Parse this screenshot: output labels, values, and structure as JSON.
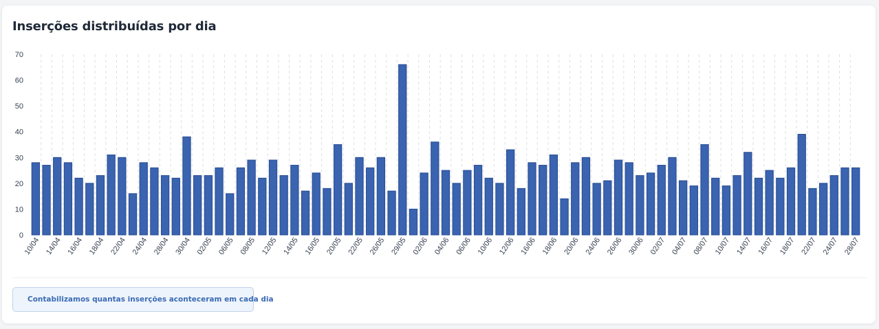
{
  "card": {
    "title": "Inserções distribuídas por dia",
    "info_text": "Contabilizamos quantas inserções aconteceram em cada dia",
    "info_icon": "info-circle-icon"
  },
  "colors": {
    "bar_fill": "#3a63b0",
    "bar_stroke": "#274b8f",
    "grid": "#dcdfe4",
    "info_accent": "#3b6bb5"
  },
  "chart_data": {
    "type": "bar",
    "title": "",
    "xlabel": "",
    "ylabel": "",
    "ylim": [
      0,
      70
    ],
    "y_ticks": [
      0,
      10,
      20,
      30,
      40,
      50,
      60,
      70
    ],
    "grid": "vertical dashed lines",
    "values": [
      28,
      27,
      30,
      28,
      22,
      20,
      23,
      31,
      30,
      16,
      28,
      26,
      23,
      22,
      38,
      23,
      23,
      26,
      16,
      26,
      29,
      22,
      29,
      23,
      27,
      17,
      24,
      18,
      35,
      20,
      30,
      26,
      30,
      17,
      66,
      10,
      24,
      36,
      25,
      20,
      25,
      27,
      22,
      20,
      33,
      18,
      28,
      27,
      31,
      14,
      28,
      30,
      20,
      21,
      29,
      28,
      23,
      24,
      27,
      30,
      21,
      19,
      35,
      22,
      19,
      23,
      32,
      22,
      25,
      22,
      26,
      39,
      18,
      20,
      23,
      26,
      26
    ],
    "x_tick_labels": [
      "10/04",
      "14/04",
      "16/04",
      "18/04",
      "22/04",
      "24/04",
      "28/04",
      "30/04",
      "02/05",
      "06/05",
      "08/05",
      "12/05",
      "14/05",
      "16/05",
      "20/05",
      "22/05",
      "26/05",
      "29/05",
      "02/06",
      "04/06",
      "06/06",
      "10/06",
      "12/06",
      "16/06",
      "18/06",
      "20/06",
      "24/06",
      "26/06",
      "30/06",
      "02/07",
      "04/07",
      "08/07",
      "10/07",
      "14/07",
      "16/07",
      "18/07",
      "22/07",
      "24/07",
      "28/07"
    ],
    "x_tick_every": 2
  }
}
